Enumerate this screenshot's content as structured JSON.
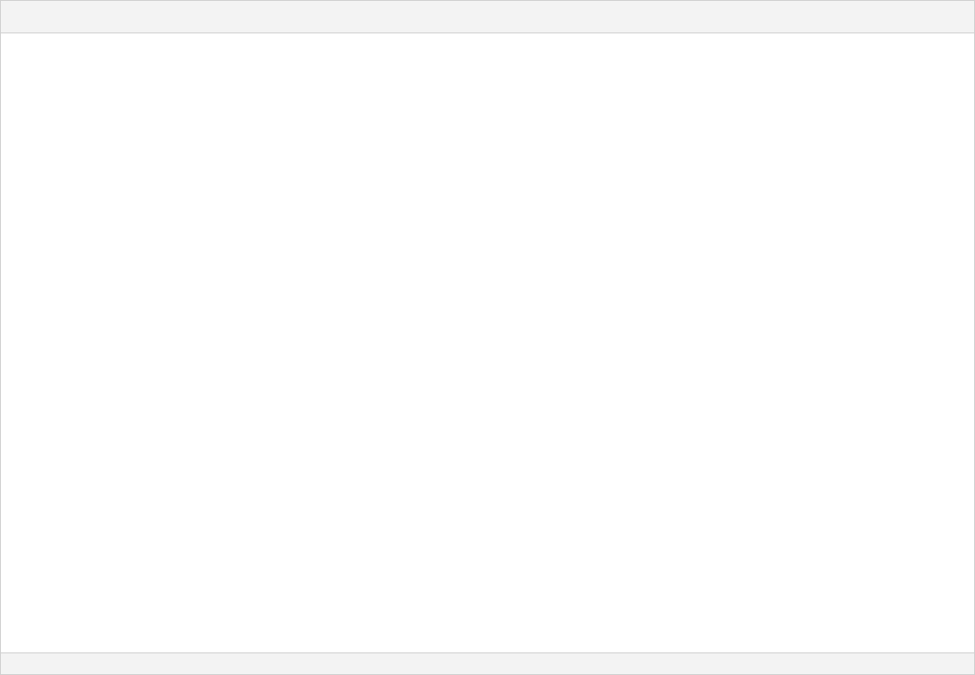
{
  "window": {
    "title": ""
  },
  "content": {
    "text": ""
  },
  "status": {
    "text": ""
  }
}
